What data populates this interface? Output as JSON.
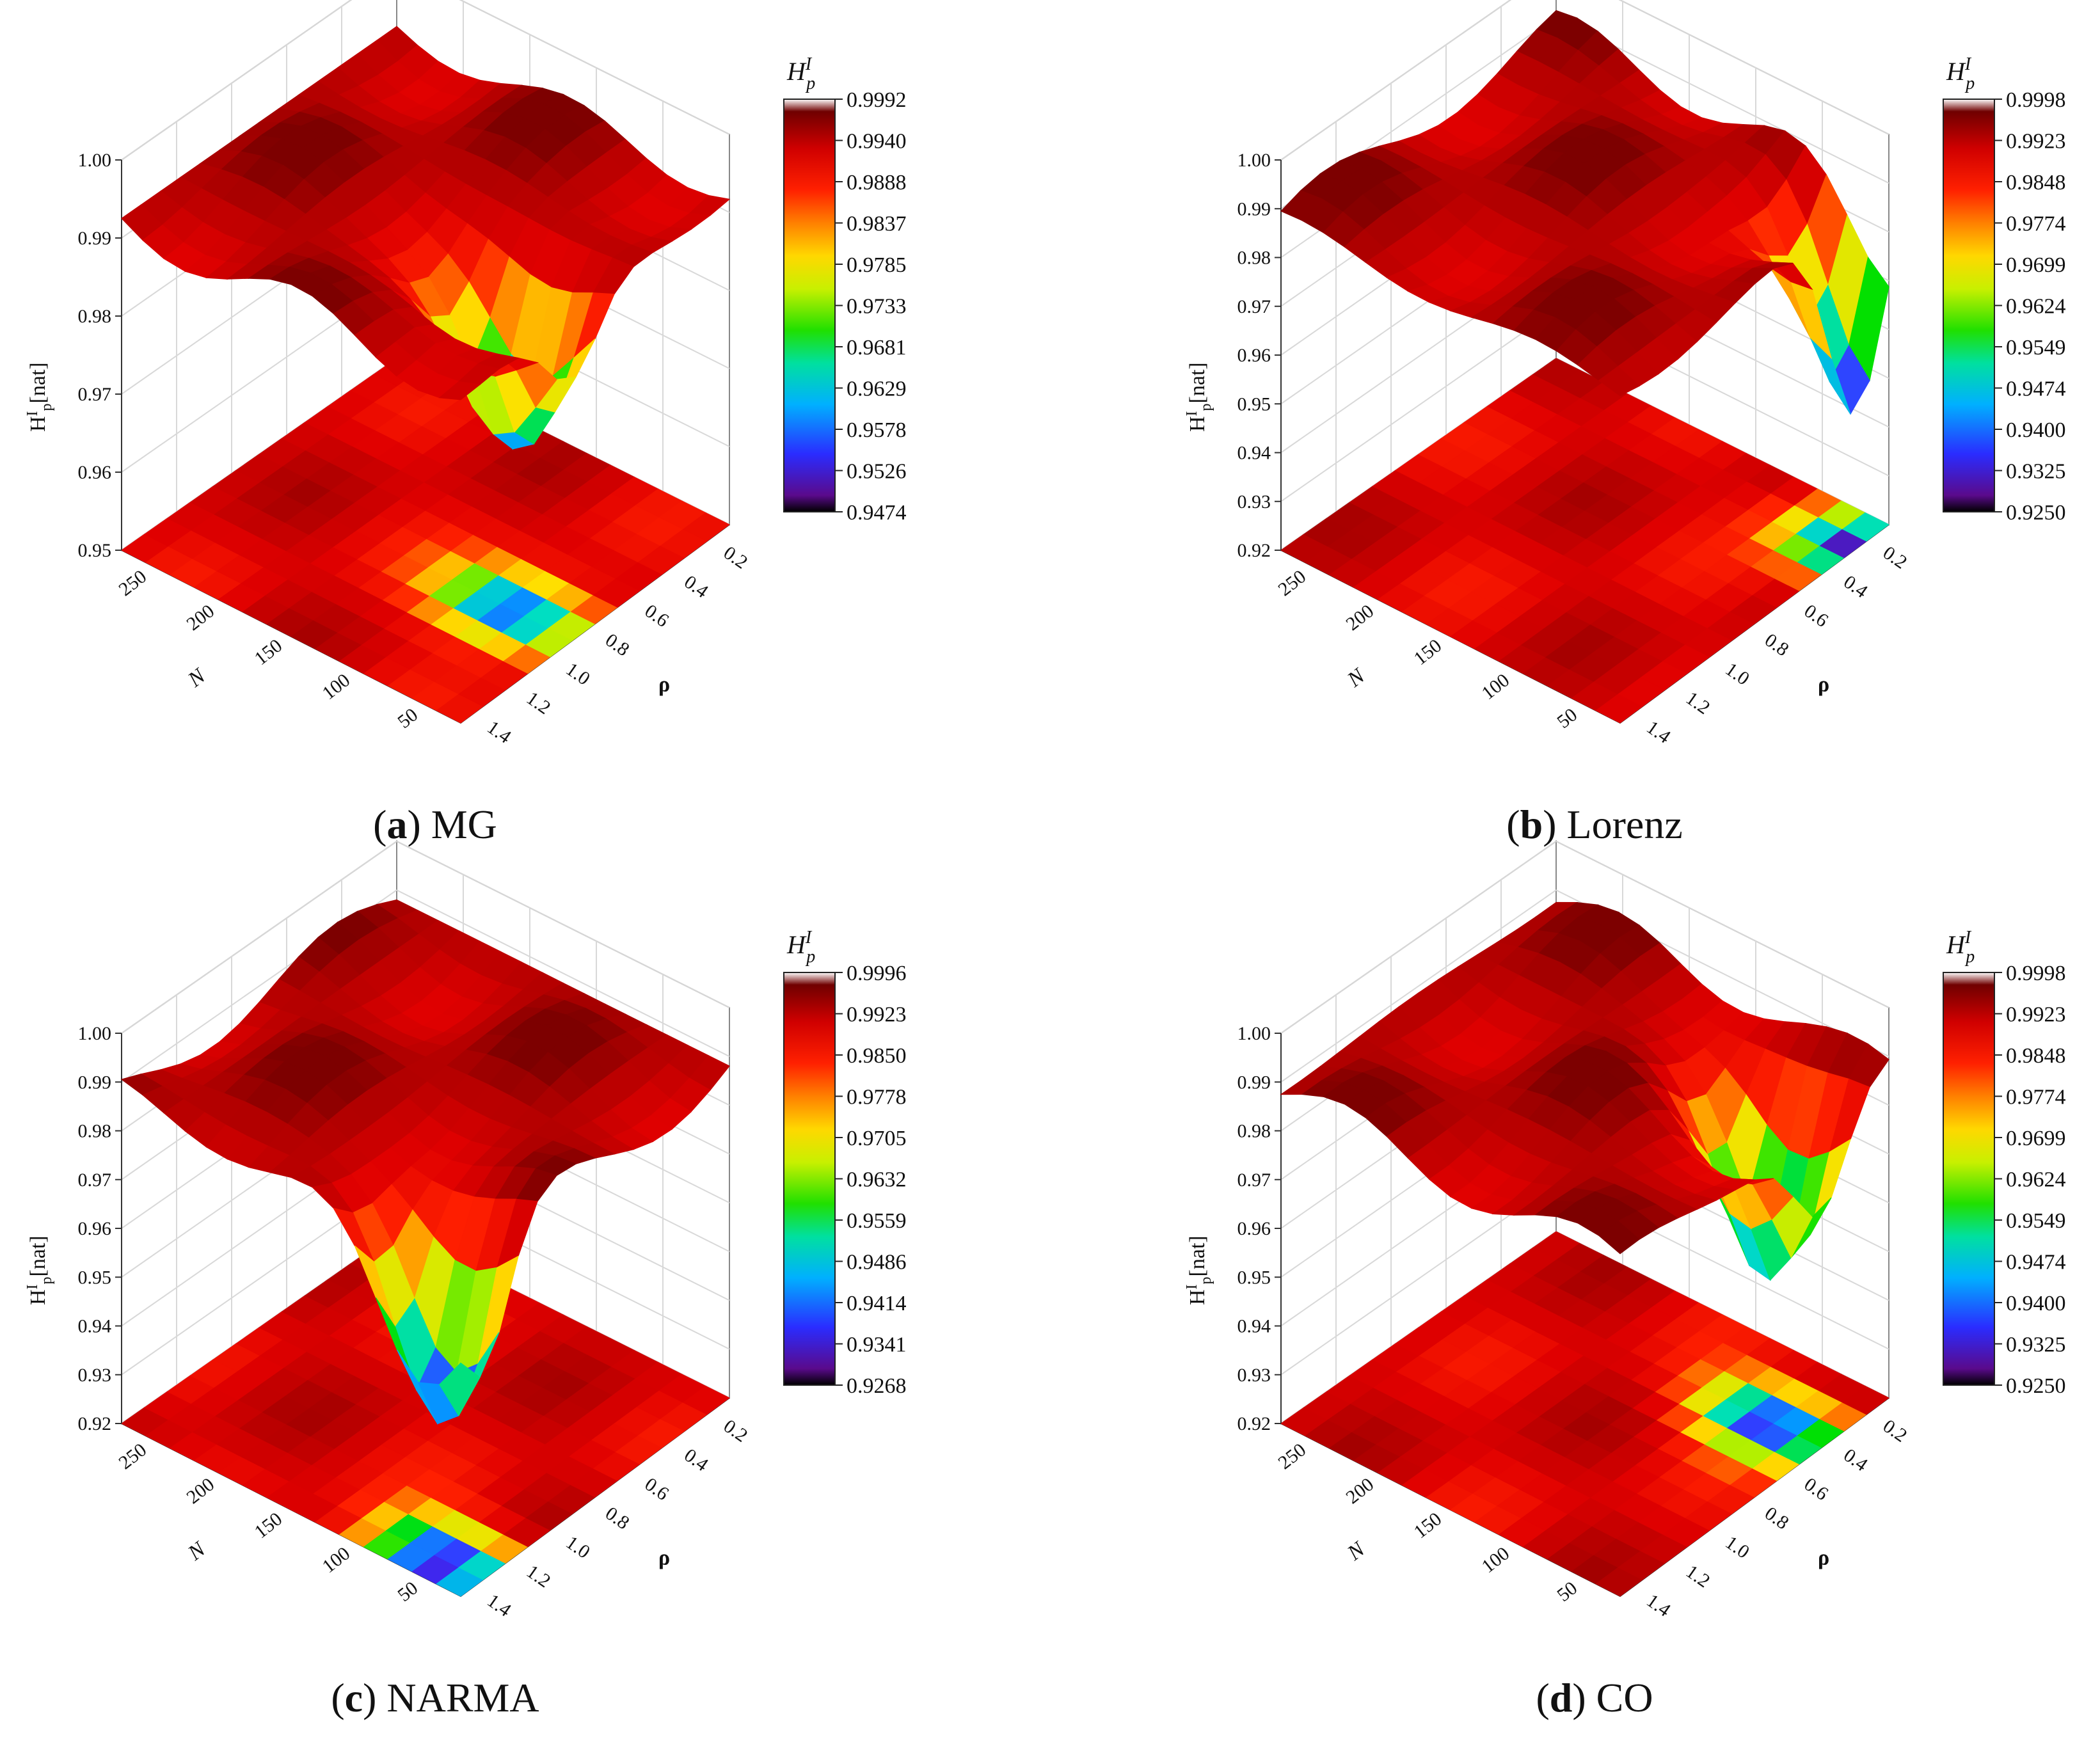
{
  "chart_data": [
    {
      "type": "surface3d",
      "caption_letter": "a",
      "caption_text": "MG",
      "z_axis_label": "H",
      "z_axis_label_sup": "I",
      "z_axis_label_sub": "p",
      "z_axis_label_unit": "[nat]",
      "z_ticks": [
        "1.00",
        "0.99",
        "0.98",
        "0.97",
        "0.96",
        "0.95"
      ],
      "zlim": [
        0.95,
        1.0
      ],
      "n_axis_label": "N",
      "n_ticks": [
        "250",
        "200",
        "150",
        "100",
        "50"
      ],
      "rho_axis_label": "ρ",
      "rho_ticks": [
        "0.2",
        "0.4",
        "0.6",
        "0.8",
        "1.0",
        "1.2",
        "1.4"
      ],
      "colorbar_title": "H",
      "colorbar_title_sup": "I",
      "colorbar_title_sub": "p",
      "colorbar_ticks": [
        "0.9992",
        "0.9940",
        "0.9888",
        "0.9837",
        "0.9785",
        "0.9733",
        "0.9681",
        "0.9629",
        "0.9578",
        "0.9526",
        "0.9474"
      ],
      "min_value": 0.9474,
      "max_value": 0.9992,
      "dip": {
        "n": 85,
        "rho": 0.9
      }
    },
    {
      "type": "surface3d",
      "caption_letter": "b",
      "caption_text": "Lorenz",
      "z_axis_label": "H",
      "z_axis_label_sup": "I",
      "z_axis_label_sub": "p",
      "z_axis_label_unit": "[nat]",
      "z_ticks": [
        "1.00",
        "0.99",
        "0.98",
        "0.97",
        "0.96",
        "0.95",
        "0.94",
        "0.93",
        "0.92"
      ],
      "zlim": [
        0.92,
        1.0
      ],
      "n_axis_label": "N",
      "n_ticks": [
        "250",
        "200",
        "150",
        "100",
        "50"
      ],
      "rho_axis_label": "ρ",
      "rho_ticks": [
        "0.2",
        "0.4",
        "0.6",
        "0.8",
        "1.0",
        "1.2",
        "1.4"
      ],
      "colorbar_title": "H",
      "colorbar_title_sup": "I",
      "colorbar_title_sub": "p",
      "colorbar_ticks": [
        "0.9998",
        "0.9923",
        "0.9848",
        "0.9774",
        "0.9699",
        "0.9624",
        "0.9549",
        "0.9474",
        "0.9400",
        "0.9325",
        "0.9250"
      ],
      "min_value": 0.925,
      "max_value": 0.9998,
      "dip": {
        "n": 50,
        "rho": 0.35
      }
    },
    {
      "type": "surface3d",
      "caption_letter": "c",
      "caption_text": "NARMA",
      "z_axis_label": "H",
      "z_axis_label_sup": "I",
      "z_axis_label_sub": "p",
      "z_axis_label_unit": "[nat]",
      "z_ticks": [
        "1.00",
        "0.99",
        "0.98",
        "0.97",
        "0.96",
        "0.95",
        "0.94",
        "0.93",
        "0.92"
      ],
      "zlim": [
        0.92,
        1.0
      ],
      "n_axis_label": "N",
      "n_ticks": [
        "250",
        "200",
        "150",
        "100",
        "50"
      ],
      "rho_axis_label": "ρ",
      "rho_ticks": [
        "0.2",
        "0.4",
        "0.6",
        "0.8",
        "1.0",
        "1.2",
        "1.4"
      ],
      "colorbar_title": "H",
      "colorbar_title_sup": "I",
      "colorbar_title_sub": "p",
      "colorbar_ticks": [
        "0.9996",
        "0.9923",
        "0.9850",
        "0.9778",
        "0.9705",
        "0.9632",
        "0.9559",
        "0.9486",
        "0.9414",
        "0.9341",
        "0.9268"
      ],
      "min_value": 0.9268,
      "max_value": 0.9996,
      "dip": {
        "n": 75,
        "rho": 1.3
      }
    },
    {
      "type": "surface3d",
      "caption_letter": "d",
      "caption_text": "CO",
      "z_axis_label": "H",
      "z_axis_label_sup": "I",
      "z_axis_label_sub": "p",
      "z_axis_label_unit": "[nat]",
      "z_ticks": [
        "1.00",
        "0.99",
        "0.98",
        "0.97",
        "0.96",
        "0.95",
        "0.94",
        "0.93",
        "0.92"
      ],
      "zlim": [
        0.92,
        1.0
      ],
      "n_axis_label": "N",
      "n_ticks": [
        "250",
        "200",
        "150",
        "100",
        "50"
      ],
      "rho_axis_label": "ρ",
      "rho_ticks": [
        "0.2",
        "0.4",
        "0.6",
        "0.8",
        "1.0",
        "1.2",
        "1.4"
      ],
      "colorbar_title": "H",
      "colorbar_title_sup": "I",
      "colorbar_title_sub": "p",
      "colorbar_ticks": [
        "0.9998",
        "0.9923",
        "0.9848",
        "0.9774",
        "0.9699",
        "0.9624",
        "0.9549",
        "0.9474",
        "0.9400",
        "0.9325",
        "0.9250"
      ],
      "min_value": 0.925,
      "max_value": 0.9998,
      "dip": {
        "n": 80,
        "rho": 0.5
      }
    }
  ],
  "colormap": [
    "#2d0020",
    "#5a0a8c",
    "#3a2cff",
    "#00a0ff",
    "#00e0c0",
    "#00e000",
    "#b8f000",
    "#ffe000",
    "#ff9000",
    "#ff2000",
    "#e00000",
    "#b00000",
    "#600000"
  ]
}
